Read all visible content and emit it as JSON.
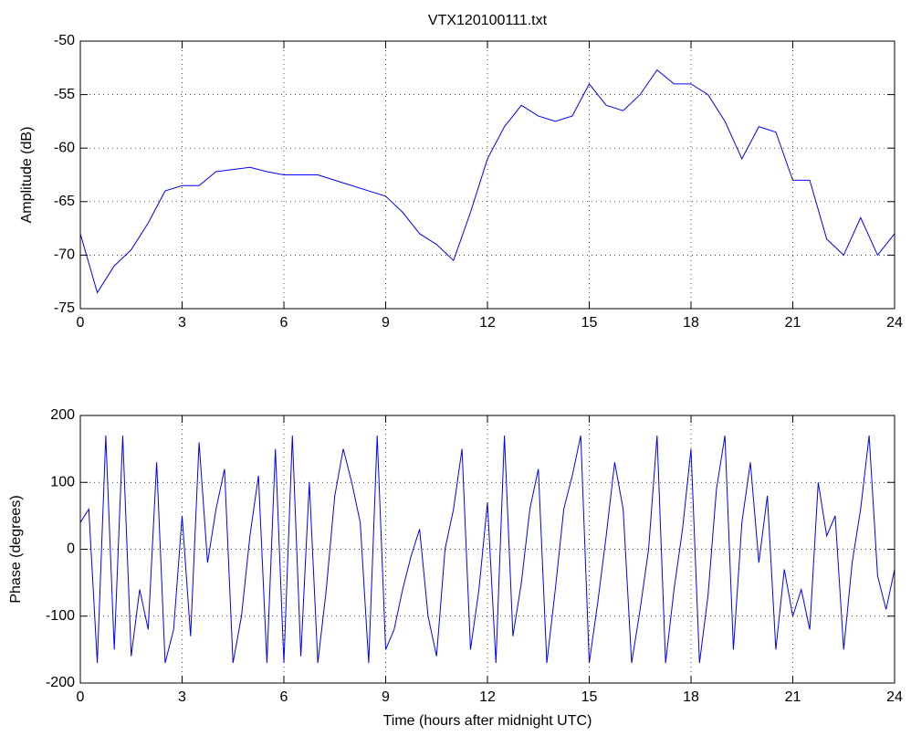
{
  "chart_data": [
    {
      "type": "line",
      "title": "VTX120100111.txt",
      "ylabel": "Amplitude (dB)",
      "xlim": [
        0,
        24
      ],
      "xticks": [
        0,
        3,
        6,
        9,
        12,
        15,
        18,
        21,
        24
      ],
      "ylim": [
        -75,
        -50
      ],
      "yticks": [
        -75,
        -70,
        -65,
        -60,
        -55,
        -50
      ],
      "grid": true,
      "series": [
        {
          "color": "#0000ff",
          "x": [
            0,
            0.5,
            1,
            1.5,
            2,
            2.5,
            3,
            3.5,
            4,
            4.5,
            5,
            5.5,
            6,
            6.5,
            7,
            7.5,
            8,
            8.5,
            9,
            9.5,
            10,
            10.5,
            11,
            11.5,
            12,
            12.5,
            13,
            13.5,
            14,
            14.5,
            15,
            15.5,
            16,
            16.5,
            17,
            17.5,
            18,
            18.5,
            19,
            19.5,
            20,
            20.5,
            21,
            21.5,
            22,
            22.5,
            23,
            23.5,
            24
          ],
          "values": [
            -68,
            -73.5,
            -71,
            -69.5,
            -67,
            -64,
            -63.5,
            -63.5,
            -62.2,
            -62,
            -61.8,
            -62.2,
            -62.5,
            -62.5,
            -62.5,
            -63,
            -63.5,
            -64,
            -64.5,
            -66,
            -68,
            -69,
            -70.5,
            -66,
            -61,
            -58,
            -56,
            -57,
            -57.5,
            -57,
            -54,
            -56,
            -56.5,
            -55,
            -52.7,
            -54,
            -54,
            -55,
            -57.5,
            -61,
            -58,
            -58.5,
            -63,
            -63,
            -68.5,
            -70,
            -66.5,
            -70,
            -68
          ]
        }
      ]
    },
    {
      "type": "line",
      "xlabel": "Time (hours after midnight UTC)",
      "ylabel": "Phase (degrees)",
      "xlim": [
        0,
        24
      ],
      "xticks": [
        0,
        3,
        6,
        9,
        12,
        15,
        18,
        21,
        24
      ],
      "ylim": [
        -200,
        200
      ],
      "yticks": [
        -200,
        -100,
        0,
        100,
        200
      ],
      "grid": true,
      "series": [
        {
          "color": "#0000ff",
          "x": [
            0,
            0.25,
            0.5,
            0.75,
            1,
            1.25,
            1.5,
            1.75,
            2,
            2.25,
            2.5,
            2.75,
            3,
            3.25,
            3.5,
            3.75,
            4,
            4.25,
            4.5,
            4.75,
            5,
            5.25,
            5.5,
            5.75,
            6,
            6.25,
            6.5,
            6.75,
            7,
            7.25,
            7.5,
            7.75,
            8,
            8.25,
            8.5,
            8.75,
            9,
            9.25,
            9.5,
            9.75,
            10,
            10.25,
            10.5,
            10.75,
            11,
            11.25,
            11.5,
            11.75,
            12,
            12.25,
            12.5,
            12.75,
            13,
            13.25,
            13.5,
            13.75,
            14,
            14.25,
            14.5,
            14.75,
            15,
            15.25,
            15.5,
            15.75,
            16,
            16.25,
            16.5,
            16.75,
            17,
            17.25,
            17.5,
            17.75,
            18,
            18.25,
            18.5,
            18.75,
            19,
            19.25,
            19.5,
            19.75,
            20,
            20.25,
            20.5,
            20.75,
            21,
            21.25,
            21.5,
            21.75,
            22,
            22.25,
            22.5,
            22.75,
            23,
            23.25,
            23.5,
            23.75,
            24
          ],
          "values": [
            40,
            60,
            -170,
            170,
            -150,
            170,
            -160,
            -60,
            -120,
            130,
            -170,
            -120,
            50,
            -130,
            160,
            -20,
            60,
            120,
            -170,
            -100,
            20,
            110,
            -170,
            150,
            -170,
            170,
            -160,
            100,
            -170,
            -60,
            80,
            150,
            100,
            40,
            -170,
            170,
            -150,
            -120,
            -60,
            -10,
            30,
            -100,
            -160,
            0,
            60,
            150,
            -150,
            -60,
            70,
            -170,
            170,
            -130,
            -50,
            60,
            120,
            -170,
            -60,
            60,
            110,
            170,
            -170,
            -80,
            20,
            130,
            60,
            -170,
            -90,
            0,
            170,
            -170,
            -60,
            30,
            150,
            -170,
            -70,
            90,
            170,
            -150,
            40,
            130,
            -20,
            80,
            -150,
            -30,
            -100,
            -60,
            -120,
            100,
            20,
            50,
            -150,
            -20,
            60,
            170,
            -40,
            -90,
            -30
          ]
        }
      ]
    }
  ]
}
